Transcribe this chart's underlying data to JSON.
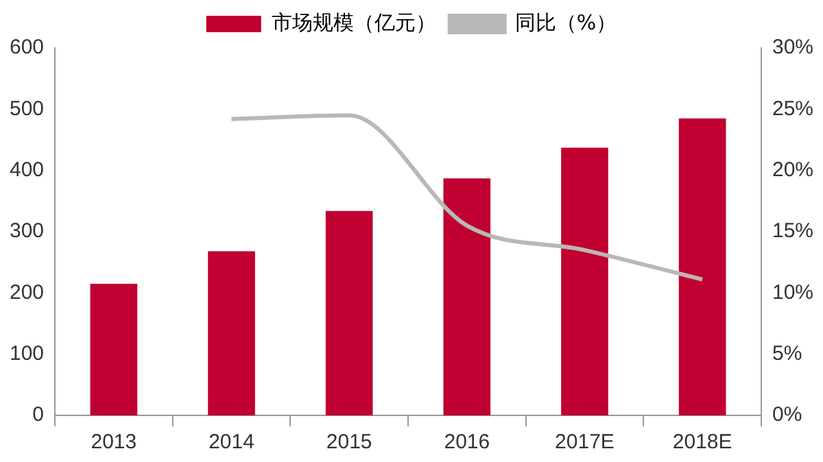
{
  "chart_data": {
    "type": "bar",
    "categories": [
      "2013",
      "2014",
      "2015",
      "2016",
      "2017E",
      "2018E"
    ],
    "series": [
      {
        "name": "市场规模（亿元）",
        "color": "#c00030",
        "values": [
          215,
          268,
          334,
          387,
          437,
          485
        ]
      },
      {
        "name": "同比（%）",
        "type": "line",
        "axis": "y2",
        "color": "#b8b8b8",
        "marker": "none",
        "values": [
          null,
          24.2,
          24.5,
          15.5,
          13.5,
          11.1
        ]
      }
    ],
    "ylim": [
      0,
      600
    ],
    "yticks": [
      0,
      100,
      200,
      300,
      400,
      500,
      600
    ],
    "y2lim": [
      0,
      30
    ],
    "y2ticks": [
      {
        "value": 0,
        "label": "0%"
      },
      {
        "value": 5,
        "label": "5%"
      },
      {
        "value": 10,
        "label": "10%"
      },
      {
        "value": 15,
        "label": "15%"
      },
      {
        "value": 20,
        "label": "20%"
      },
      {
        "value": 25,
        "label": "25%"
      },
      {
        "value": 30,
        "label": "30%"
      }
    ],
    "grid": false,
    "legend": "top"
  }
}
